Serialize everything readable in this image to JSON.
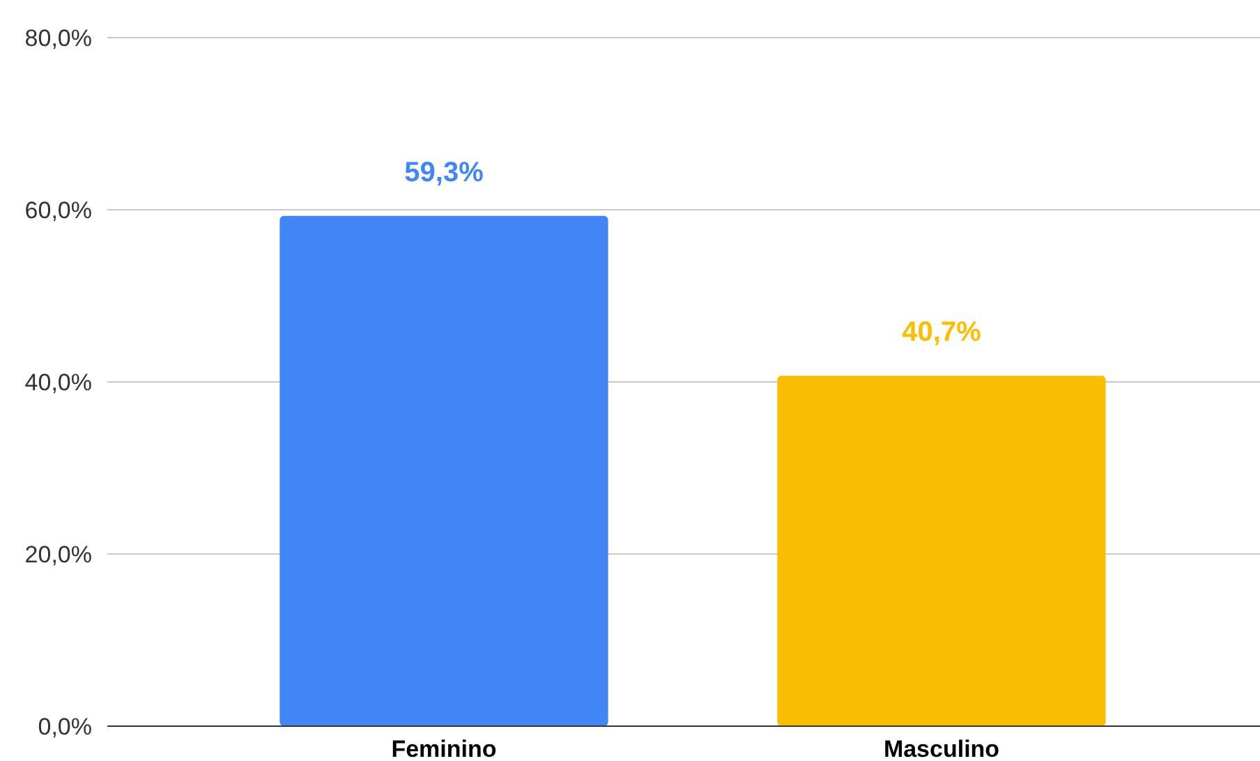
{
  "chart_data": {
    "type": "bar",
    "categories": [
      "Feminino",
      "Masculino"
    ],
    "values": [
      59.3,
      40.7
    ],
    "colors": [
      "#4285f4",
      "#fbbc04"
    ],
    "value_labels": [
      "59,3%",
      "40,7%"
    ],
    "ylim": [
      0,
      80
    ],
    "yticks": [
      {
        "value": 0,
        "label": "0,0%"
      },
      {
        "value": 20,
        "label": "20,0%"
      },
      {
        "value": 40,
        "label": "40,0%"
      },
      {
        "value": 60,
        "label": "60,0%"
      },
      {
        "value": 80,
        "label": "80,0%"
      }
    ],
    "grid": "y"
  }
}
